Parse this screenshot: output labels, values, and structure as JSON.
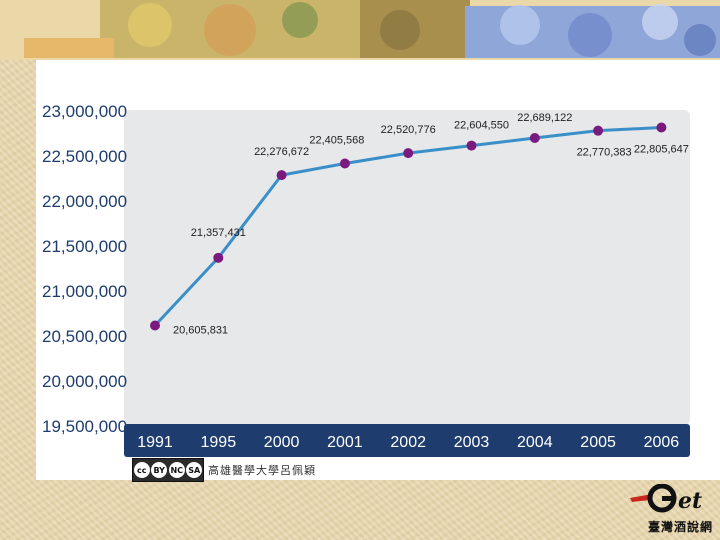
{
  "chart_data": {
    "type": "line",
    "categories": [
      "1991",
      "1995",
      "2000",
      "2001",
      "2002",
      "2003",
      "2004",
      "2005",
      "2006"
    ],
    "values": [
      20605831,
      21357431,
      22276672,
      22405568,
      22520776,
      22604550,
      22689122,
      22770383,
      22805647
    ],
    "value_labels": [
      "20,605,831",
      "21,357,431",
      "22,276,672",
      "22,405,568",
      "22,520,776",
      "22,604,550",
      "22,689,122",
      "22,770,383",
      "22,805,647"
    ],
    "y_ticks": [
      23000000,
      22500000,
      22000000,
      21500000,
      21000000,
      20500000,
      20000000,
      19500000
    ],
    "y_tick_labels": [
      "23,000,000",
      "22,500,000",
      "22,000,000",
      "21,500,000",
      "21,000,000",
      "20,500,000",
      "20,000,000",
      "19,500,000"
    ],
    "ylim": [
      19500000,
      23000000
    ],
    "grid": false,
    "title": "",
    "xlabel": "",
    "ylabel": "",
    "line_color": "#3a8fc9",
    "marker_color": "#7b1a7e",
    "axis_bar_color": "#1e3d6e"
  },
  "credit": {
    "license_icons": [
      "cc",
      "BY",
      "NC",
      "SA"
    ],
    "text": "高雄醫學大學呂佩穎"
  },
  "logo": {
    "brand": "Get",
    "subtitle": "臺灣酒說網"
  }
}
